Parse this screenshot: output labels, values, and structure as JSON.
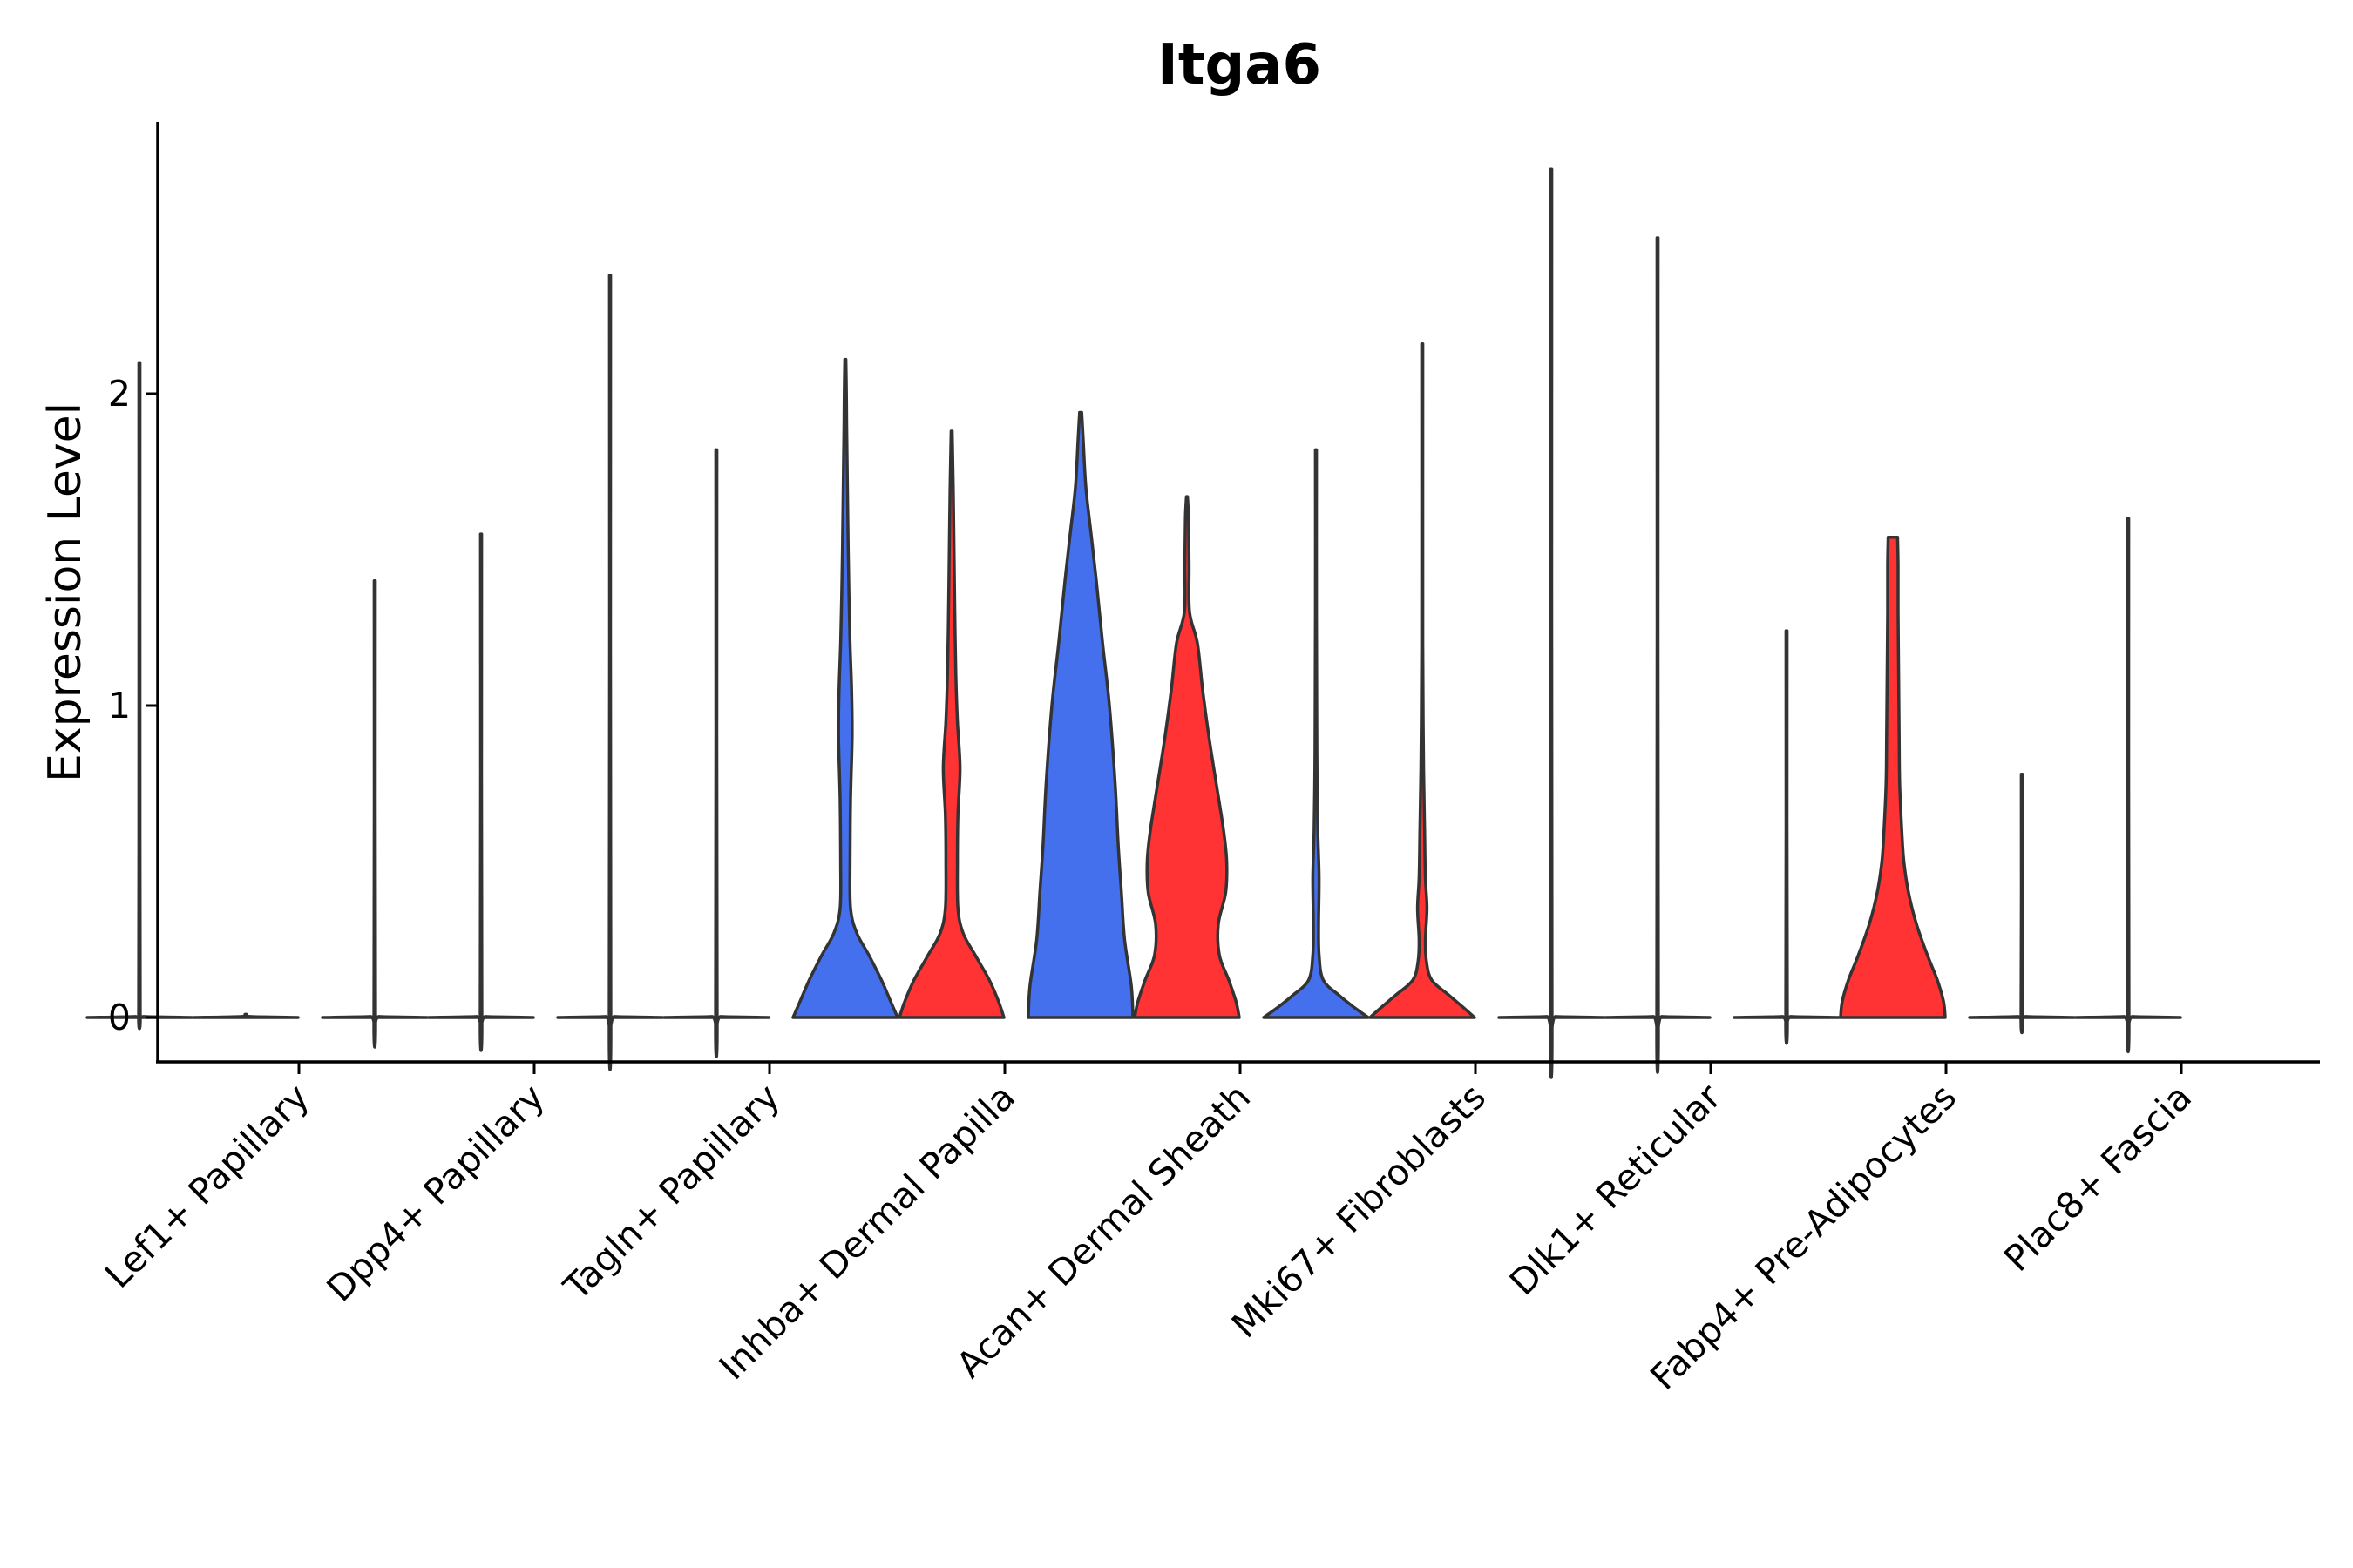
{
  "chart_data": {
    "type": "violin",
    "title": "Itga6",
    "xlabel": "",
    "ylabel": "Expression Level",
    "ylim": [
      -0.14,
      2.9
    ],
    "yticks": [
      0,
      1,
      2
    ],
    "grid": false,
    "legend": "none",
    "colors": {
      "group_a": "#4470ee",
      "group_b": "#ff3333",
      "outline": "#333333"
    },
    "categories": [
      "Lef1+ Papillary",
      "Dpp4+ Papillary",
      "Tagln+ Papillary",
      "Inhba+ Dermal Papilla",
      "Acan+ Dermal Sheath",
      "Mki67+ Fibroblasts",
      "Dlk1+ Reticular",
      "Fabp4+ Pre-Adipocytes",
      "Plac8+ Fascia"
    ],
    "series": [
      {
        "name": "group_a",
        "color": "#4470ee",
        "max": [
          2.1,
          1.4,
          2.38,
          2.11,
          1.94,
          1.82,
          2.72,
          1.24,
          0.78
        ]
      },
      {
        "name": "group_b",
        "color": "#ff3333",
        "max": [
          0.0,
          1.55,
          1.82,
          1.88,
          1.67,
          2.16,
          2.5,
          1.54,
          1.6
        ]
      }
    ],
    "violins": [
      {
        "category": "Lef1+ Papillary",
        "group": "group_a",
        "filled": false,
        "max": 2.1,
        "profile": [
          [
            0,
            1.0
          ],
          [
            0.003,
            0.08
          ],
          [
            0.01,
            0.015
          ],
          [
            0.6,
            0.01
          ],
          [
            2.1,
            0.01
          ]
        ]
      },
      {
        "category": "Lef1+ Papillary",
        "group": "group_b",
        "filled": false,
        "max": 0.0,
        "profile": [
          [
            0,
            1.0
          ],
          [
            0.003,
            0.08
          ],
          [
            0.01,
            0.015
          ]
        ]
      },
      {
        "category": "Dpp4+ Papillary",
        "group": "group_a",
        "filled": false,
        "max": 1.4,
        "profile": [
          [
            0,
            1.0
          ],
          [
            0.003,
            0.08
          ],
          [
            0.01,
            0.015
          ],
          [
            1.4,
            0.01
          ]
        ]
      },
      {
        "category": "Dpp4+ Papillary",
        "group": "group_b",
        "filled": false,
        "max": 1.55,
        "profile": [
          [
            0,
            1.0
          ],
          [
            0.003,
            0.08
          ],
          [
            0.01,
            0.015
          ],
          [
            1.55,
            0.01
          ]
        ]
      },
      {
        "category": "Tagln+ Papillary",
        "group": "group_a",
        "filled": false,
        "max": 2.38,
        "profile": [
          [
            0,
            1.0
          ],
          [
            0.003,
            0.08
          ],
          [
            0.01,
            0.015
          ],
          [
            2.38,
            0.01
          ]
        ]
      },
      {
        "category": "Tagln+ Papillary",
        "group": "group_b",
        "filled": false,
        "max": 1.82,
        "profile": [
          [
            0,
            1.0
          ],
          [
            0.003,
            0.08
          ],
          [
            0.01,
            0.015
          ],
          [
            1.82,
            0.01
          ]
        ]
      },
      {
        "category": "Inhba+ Dermal Papilla",
        "group": "group_a",
        "filled": true,
        "max": 2.11,
        "profile": [
          [
            0,
            1.0
          ],
          [
            0.05,
            0.87
          ],
          [
            0.12,
            0.69
          ],
          [
            0.2,
            0.45
          ],
          [
            0.27,
            0.22
          ],
          [
            0.35,
            0.1
          ],
          [
            0.5,
            0.09
          ],
          [
            0.7,
            0.1
          ],
          [
            0.9,
            0.13
          ],
          [
            1.05,
            0.12
          ],
          [
            1.2,
            0.09
          ],
          [
            1.35,
            0.07
          ],
          [
            1.5,
            0.055
          ],
          [
            1.7,
            0.04
          ],
          [
            1.9,
            0.025
          ],
          [
            2.0,
            0.02
          ],
          [
            2.11,
            0.01
          ]
        ]
      },
      {
        "category": "Inhba+ Dermal Papilla",
        "group": "group_b",
        "filled": true,
        "max": 1.88,
        "profile": [
          [
            0,
            1.0
          ],
          [
            0.05,
            0.9
          ],
          [
            0.12,
            0.72
          ],
          [
            0.2,
            0.45
          ],
          [
            0.27,
            0.22
          ],
          [
            0.35,
            0.12
          ],
          [
            0.5,
            0.11
          ],
          [
            0.65,
            0.12
          ],
          [
            0.8,
            0.16
          ],
          [
            0.95,
            0.11
          ],
          [
            1.1,
            0.08
          ],
          [
            1.3,
            0.06
          ],
          [
            1.5,
            0.045
          ],
          [
            1.7,
            0.03
          ],
          [
            1.88,
            0.01
          ]
        ]
      },
      {
        "category": "Acan+ Dermal Sheath",
        "group": "group_a",
        "filled": true,
        "max": 1.94,
        "profile": [
          [
            0,
            1.0
          ],
          [
            0.1,
            0.97
          ],
          [
            0.25,
            0.84
          ],
          [
            0.4,
            0.78
          ],
          [
            0.55,
            0.72
          ],
          [
            0.75,
            0.66
          ],
          [
            1.0,
            0.55
          ],
          [
            1.2,
            0.42
          ],
          [
            1.4,
            0.3
          ],
          [
            1.55,
            0.2
          ],
          [
            1.7,
            0.1
          ],
          [
            1.85,
            0.05
          ],
          [
            1.94,
            0.02
          ]
        ]
      },
      {
        "category": "Acan+ Dermal Sheath",
        "group": "group_b",
        "filled": true,
        "max": 1.67,
        "profile": [
          [
            0,
            1.0
          ],
          [
            0.05,
            0.94
          ],
          [
            0.12,
            0.8
          ],
          [
            0.2,
            0.62
          ],
          [
            0.3,
            0.6
          ],
          [
            0.4,
            0.74
          ],
          [
            0.5,
            0.76
          ],
          [
            0.6,
            0.7
          ],
          [
            0.75,
            0.56
          ],
          [
            0.9,
            0.42
          ],
          [
            1.05,
            0.3
          ],
          [
            1.2,
            0.2
          ],
          [
            1.3,
            0.05
          ],
          [
            1.45,
            0.04
          ],
          [
            1.6,
            0.03
          ],
          [
            1.67,
            0.01
          ]
        ]
      },
      {
        "category": "Mki67+ Fibroblasts",
        "group": "group_a",
        "filled": true,
        "max": 1.82,
        "profile": [
          [
            0,
            1.0
          ],
          [
            0.03,
            0.75
          ],
          [
            0.07,
            0.45
          ],
          [
            0.12,
            0.14
          ],
          [
            0.2,
            0.06
          ],
          [
            0.3,
            0.05
          ],
          [
            0.45,
            0.06
          ],
          [
            0.6,
            0.035
          ],
          [
            0.8,
            0.02
          ],
          [
            1.0,
            0.015
          ],
          [
            1.3,
            0.01
          ],
          [
            1.82,
            0.01
          ]
        ]
      },
      {
        "category": "Mki67+ Fibroblasts",
        "group": "group_b",
        "filled": true,
        "max": 2.16,
        "profile": [
          [
            0,
            1.0
          ],
          [
            0.03,
            0.8
          ],
          [
            0.07,
            0.52
          ],
          [
            0.12,
            0.18
          ],
          [
            0.18,
            0.08
          ],
          [
            0.25,
            0.06
          ],
          [
            0.35,
            0.09
          ],
          [
            0.45,
            0.06
          ],
          [
            0.6,
            0.045
          ],
          [
            0.75,
            0.03
          ],
          [
            0.9,
            0.02
          ],
          [
            1.2,
            0.01
          ],
          [
            2.16,
            0.01
          ]
        ]
      },
      {
        "category": "Dlk1+ Reticular",
        "group": "group_a",
        "filled": false,
        "max": 2.72,
        "profile": [
          [
            0,
            1.0
          ],
          [
            0.003,
            0.08
          ],
          [
            0.01,
            0.015
          ],
          [
            2.72,
            0.01
          ]
        ]
      },
      {
        "category": "Dlk1+ Reticular",
        "group": "group_b",
        "filled": false,
        "max": 2.5,
        "profile": [
          [
            0,
            1.0
          ],
          [
            0.003,
            0.08
          ],
          [
            0.01,
            0.015
          ],
          [
            2.5,
            0.01
          ]
        ]
      },
      {
        "category": "Fabp4+ Pre-Adipocytes",
        "group": "group_a",
        "filled": false,
        "max": 1.24,
        "profile": [
          [
            0,
            1.0
          ],
          [
            0.003,
            0.08
          ],
          [
            0.01,
            0.015
          ],
          [
            1.24,
            0.01
          ]
        ]
      },
      {
        "category": "Fabp4+ Pre-Adipocytes",
        "group": "group_b",
        "filled": true,
        "max": 1.54,
        "profile": [
          [
            0,
            1.0
          ],
          [
            0.05,
            0.97
          ],
          [
            0.12,
            0.85
          ],
          [
            0.2,
            0.66
          ],
          [
            0.3,
            0.45
          ],
          [
            0.4,
            0.3
          ],
          [
            0.5,
            0.21
          ],
          [
            0.6,
            0.17
          ],
          [
            0.75,
            0.13
          ],
          [
            0.9,
            0.12
          ],
          [
            1.1,
            0.11
          ],
          [
            1.3,
            0.1
          ],
          [
            1.45,
            0.1
          ],
          [
            1.54,
            0.09
          ]
        ]
      },
      {
        "category": "Plac8+ Fascia",
        "group": "group_a",
        "filled": false,
        "max": 0.78,
        "profile": [
          [
            0,
            1.0
          ],
          [
            0.003,
            0.08
          ],
          [
            0.01,
            0.015
          ],
          [
            0.78,
            0.01
          ]
        ]
      },
      {
        "category": "Plac8+ Fascia",
        "group": "group_b",
        "filled": false,
        "max": 1.6,
        "profile": [
          [
            0,
            1.0
          ],
          [
            0.003,
            0.08
          ],
          [
            0.01,
            0.015
          ],
          [
            1.6,
            0.01
          ]
        ]
      }
    ]
  }
}
